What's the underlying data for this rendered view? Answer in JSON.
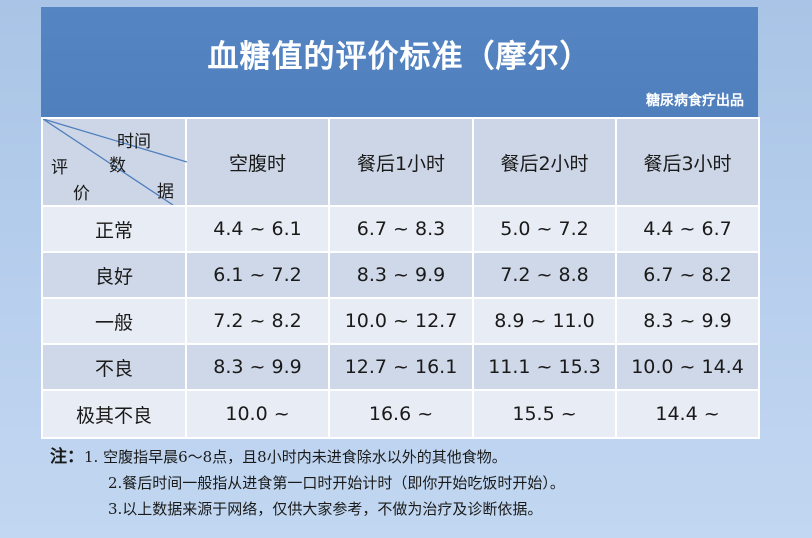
{
  "title": "血糖值的评价标准（摩尔）",
  "source": "糖尿病食疗出品",
  "corner": {
    "time": "时间",
    "data": "数",
    "data2": "据",
    "eval": "评",
    "eval2": "价"
  },
  "columns": [
    "空腹时",
    "餐后1小时",
    "餐后2小时",
    "餐后3小时"
  ],
  "rows": [
    {
      "label": "正常",
      "values": [
        "4.4 ~ 6.1",
        "6.7 ~ 8.3",
        "5.0 ~ 7.2",
        "4.4 ~ 6.7"
      ]
    },
    {
      "label": "良好",
      "values": [
        "6.1 ~ 7.2",
        "8.3 ~ 9.9",
        "7.2 ~ 8.8",
        "6.7 ~ 8.2"
      ]
    },
    {
      "label": "一般",
      "values": [
        "7.2 ~ 8.2",
        "10.0 ~ 12.7",
        "8.9 ~ 11.0",
        "8.3 ~ 9.9"
      ]
    },
    {
      "label": "不良",
      "values": [
        "8.3 ~ 9.9",
        "12.7 ~ 16.1",
        "11.1 ~ 15.3",
        "10.0 ~ 14.4"
      ]
    },
    {
      "label": "极其不良",
      "values": [
        "10.0 ~",
        "16.6 ~",
        "15.5 ~",
        "14.4 ~"
      ]
    }
  ],
  "notes": {
    "lead": "注：",
    "items": [
      "1. 空腹指早晨6～8点，且8小时内未进食除水以外的其他食物。",
      "2.餐后时间一般指从进食第一口时开始计时（即你开始吃饭时开始）。",
      "3.以上数据来源于网络，仅供大家参考，不做为治疗及诊断依据。"
    ]
  },
  "colors": {
    "banner": "#5585c3",
    "row_light": "#e8ecf4",
    "row_dark": "#cfd8e8",
    "background": "#b9d0ee"
  }
}
